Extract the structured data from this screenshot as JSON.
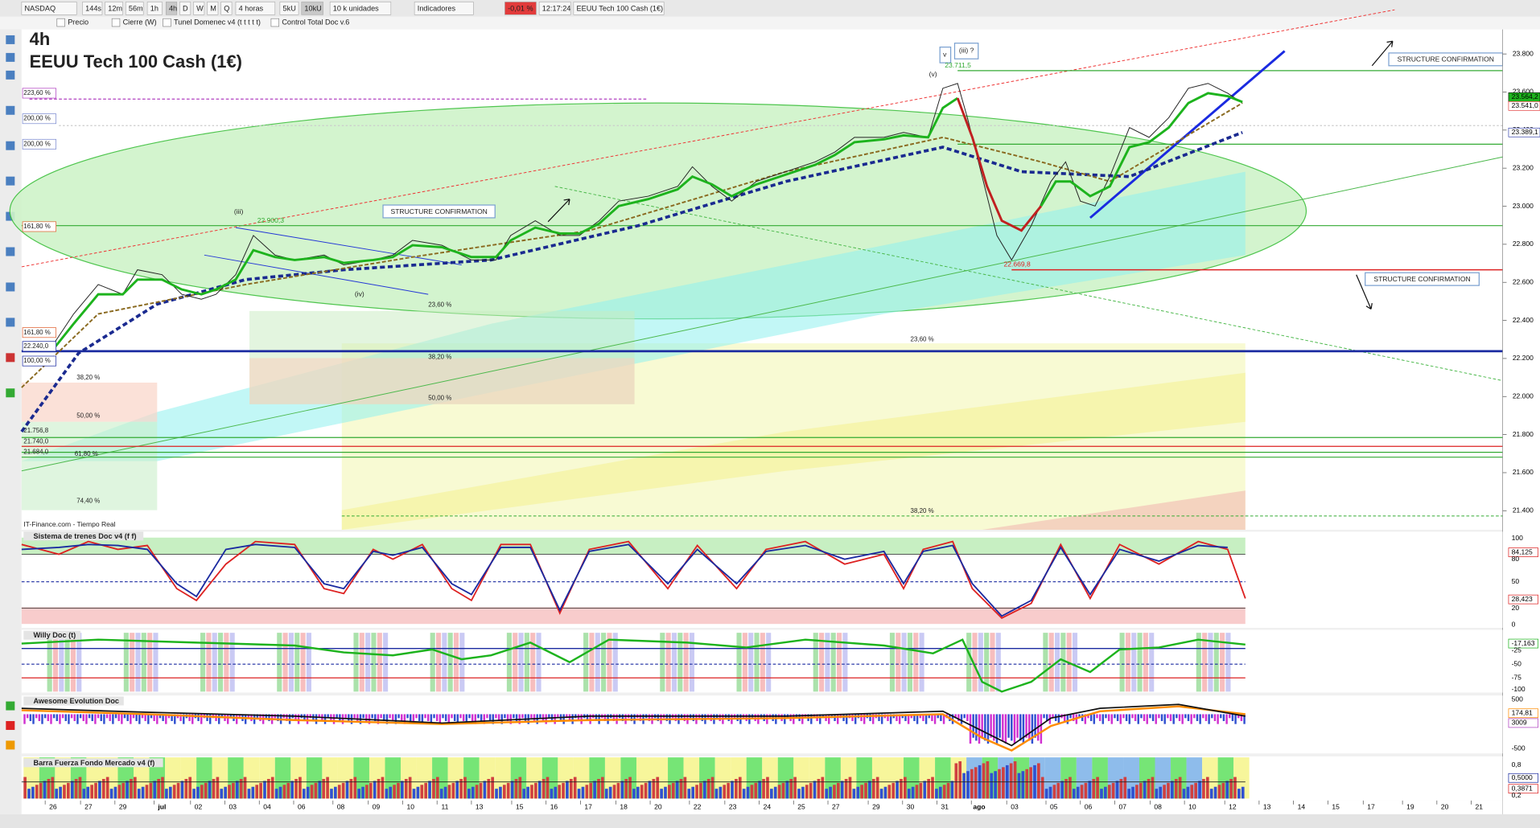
{
  "toolbar": {
    "items": [
      "NASDAQ",
      "144s",
      "12m",
      "56m",
      "1h",
      "4h",
      "D",
      "W",
      "M",
      "Q",
      "4 horas",
      "5kU",
      "10kU",
      "10 k unidades",
      "Indicadores",
      "-0,01 %",
      "12:17:24",
      "EEUU Tech 100 Cash (1€)"
    ],
    "indicators": [
      "Precio",
      "Cierre (W)",
      "Tunel Domenec v4 (t t t t t)",
      "Control Total Doc v.6"
    ]
  },
  "chart": {
    "timeframe": "4h",
    "title": "EEUU Tech 100 Cash (1€)",
    "source": "IT-Finance.com - Tiempo Real",
    "annotations": [
      "STRUCTURE CONFIRMATION",
      "STRUCTURE CONFIRMATION",
      "STRUCTURE CONFIRMATION"
    ],
    "wave_labels": [
      "(iii)",
      "(iv)",
      "(v)",
      "v",
      "(iii) ?"
    ],
    "price_notes": [
      "22.900,3",
      "23.711,5",
      "22.669,8"
    ],
    "levels": [
      "223,60 %",
      "200,00 %",
      "200,00 %",
      "161,80 %",
      "161,80 %",
      "22.240,0",
      "100,00 %",
      "38,20 %",
      "50,00 %",
      "21.756,8",
      "21.740,0",
      "21.684,0",
      "61,80 %",
      "74,40 %",
      "23,60 %",
      "38,20 %",
      "50,00 %",
      "23,60 %",
      "38,20 %"
    ]
  },
  "price_axis": {
    "labels": [
      "23.800",
      "23.600",
      "23.400",
      "23.200",
      "23.000",
      "22.800",
      "22.600",
      "22.400",
      "22.200",
      "22.000",
      "21.800",
      "21.600",
      "21.400"
    ],
    "markers": [
      "23.564,2",
      "23.541,0",
      "23.389,1"
    ]
  },
  "panels": [
    {
      "name": "Sistema de trenes Doc v4 (f f)",
      "scale": [
        "100",
        "84,125",
        "80",
        "50",
        "28,423",
        "20",
        "0"
      ]
    },
    {
      "name": "Willy Doc (t)",
      "scale": [
        "-17,163",
        "-25",
        "-50",
        "-75",
        "-100"
      ]
    },
    {
      "name": "Awesome Evolution Doc",
      "scale": [
        "500",
        "174,81",
        "3009",
        "-500"
      ]
    },
    {
      "name": "Barra Fuerza Fondo Mercado v4 (f)",
      "scale": [
        "0,8",
        "0,5000",
        "0,3871",
        "0,2"
      ]
    }
  ],
  "date_axis": [
    "26",
    "27",
    "29",
    "jul",
    "02",
    "03",
    "04",
    "06",
    "08",
    "09",
    "10",
    "11",
    "13",
    "15",
    "16",
    "17",
    "18",
    "20",
    "22",
    "23",
    "24",
    "25",
    "27",
    "29",
    "30",
    "31",
    "ago",
    "03",
    "05",
    "06",
    "07",
    "08",
    "10",
    "12",
    "13",
    "14",
    "15",
    "17",
    "19",
    "20",
    "21"
  ]
}
